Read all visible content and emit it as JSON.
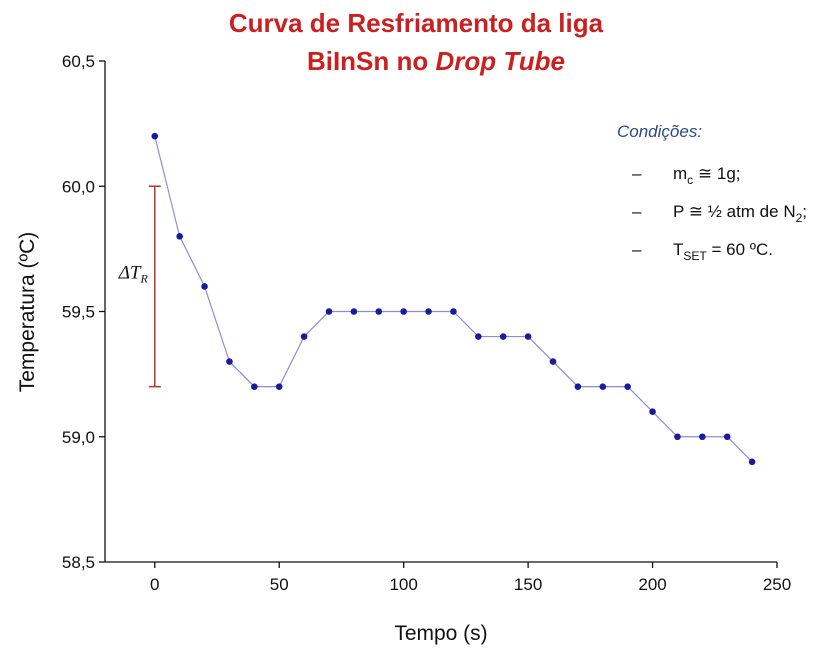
{
  "chart_data": {
    "type": "line",
    "title": {
      "line1": "Curva de Resfriamento da liga",
      "line2": "BiInSn no ",
      "line2_italic": "Drop Tube"
    },
    "xlabel": "Tempo (s)",
    "ylabel": "Temperatura (ºC)",
    "x": [
      0,
      10,
      20,
      30,
      40,
      50,
      60,
      70,
      80,
      90,
      100,
      110,
      120,
      130,
      140,
      150,
      160,
      170,
      180,
      190,
      200,
      210,
      220,
      230,
      240
    ],
    "values": [
      60.2,
      59.8,
      59.6,
      59.3,
      59.2,
      59.2,
      59.4,
      59.5,
      59.5,
      59.5,
      59.5,
      59.5,
      59.5,
      59.4,
      59.4,
      59.4,
      59.3,
      59.2,
      59.2,
      59.2,
      59.1,
      59.0,
      59.0,
      59.0,
      58.9
    ],
    "color": "#1a1a9e",
    "line_color": "#8c8cd8",
    "xlim": [
      -20,
      250
    ],
    "xticks": [
      0,
      50,
      100,
      150,
      200,
      250
    ],
    "ylim": [
      58.5,
      60.5
    ],
    "yticks": [
      {
        "value": 58.5,
        "label": "58,5"
      },
      {
        "value": 59.0,
        "label": "59,0"
      },
      {
        "value": 59.5,
        "label": "59,5"
      },
      {
        "value": 60.0,
        "label": "60,0"
      },
      {
        "value": 60.5,
        "label": "60,5"
      }
    ],
    "delta": {
      "label": "ΔT",
      "sub": "R",
      "x": 0,
      "from": 60.0,
      "to": 59.2,
      "color": "#b03a2e"
    },
    "conditions": {
      "heading": "Condições:",
      "items": [
        {
          "dash": "–",
          "main": "m",
          "sub": "c",
          "rest": " ≅ 1g;"
        },
        {
          "dash": "–",
          "main": "P ≅ ½ atm de N",
          "sub": "2",
          "rest": ";"
        },
        {
          "dash": "–",
          "main": "T",
          "sub": "SET",
          "rest": " = 60 ºC."
        }
      ]
    }
  }
}
